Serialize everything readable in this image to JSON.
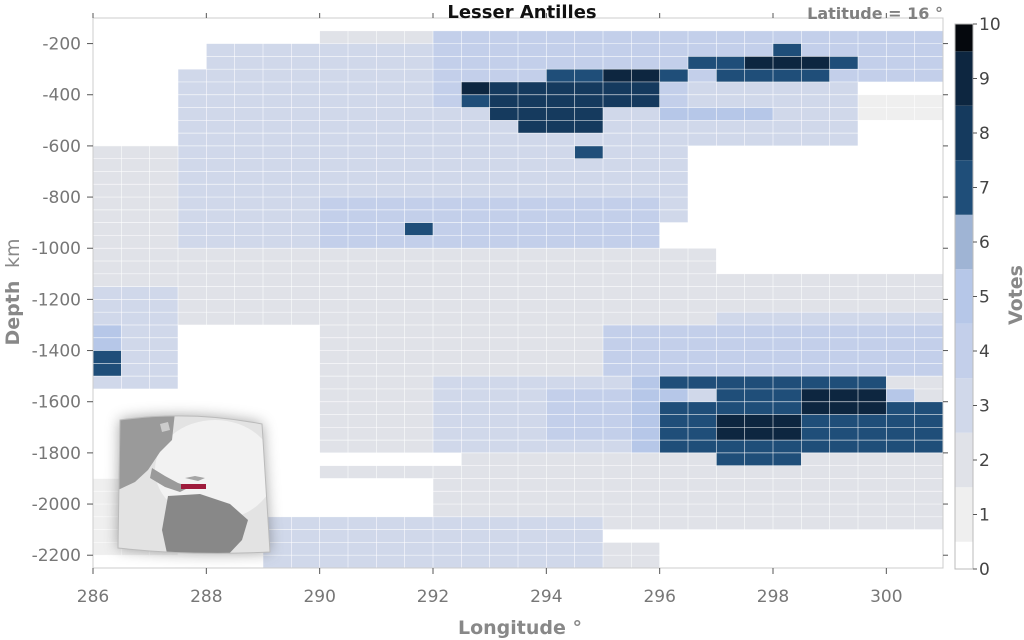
{
  "chart_data": {
    "type": "heatmap",
    "title": "Lesser Antilles",
    "annotation": "Latitude = 16 °",
    "xlabel": "Longitude °",
    "ylabel_main": "Depth",
    "ylabel_unit": "km",
    "xlim": [
      286,
      301
    ],
    "ylim": [
      -2250,
      -100
    ],
    "x_ticks": [
      286,
      288,
      290,
      292,
      294,
      296,
      298,
      300
    ],
    "y_ticks": [
      -200,
      -400,
      -600,
      -800,
      -1000,
      -1200,
      -1400,
      -1600,
      -1800,
      -2000,
      -2200
    ],
    "colorbar": {
      "label": "Votes",
      "range": [
        0,
        10
      ],
      "ticks": [
        0,
        1,
        2,
        3,
        4,
        5,
        6,
        7,
        8,
        9,
        10
      ],
      "colors": [
        "#ffffff",
        "#efefef",
        "#e0e2e8",
        "#d0d8ea",
        "#c3cfea",
        "#b6c7e8",
        "#9fb4d4",
        "#1f4e79",
        "#153a5e",
        "#0d2640",
        "#05080d"
      ]
    },
    "inset": {
      "label": "map-inset",
      "marker_color": "#9e1b3c"
    },
    "votes_by_region": [
      {
        "region": "upper band 293-295.5E, 350-550 km",
        "votes": 9
      },
      {
        "region": "upper band 297-299E, 200-320 km",
        "votes": 9
      },
      {
        "region": "lower band 296-301E, 1500-1850 km",
        "votes": 8
      },
      {
        "region": "isolated 286-286.5E, 1400-1500 km",
        "votes": 7
      },
      {
        "region": "isolated 291.6E, 930 km",
        "votes": 7
      },
      {
        "region": "background 287-296E, 200-1300 km",
        "votes": 3
      },
      {
        "region": "deep 288-295E, 2050-2250 km",
        "votes": 3
      }
    ]
  }
}
